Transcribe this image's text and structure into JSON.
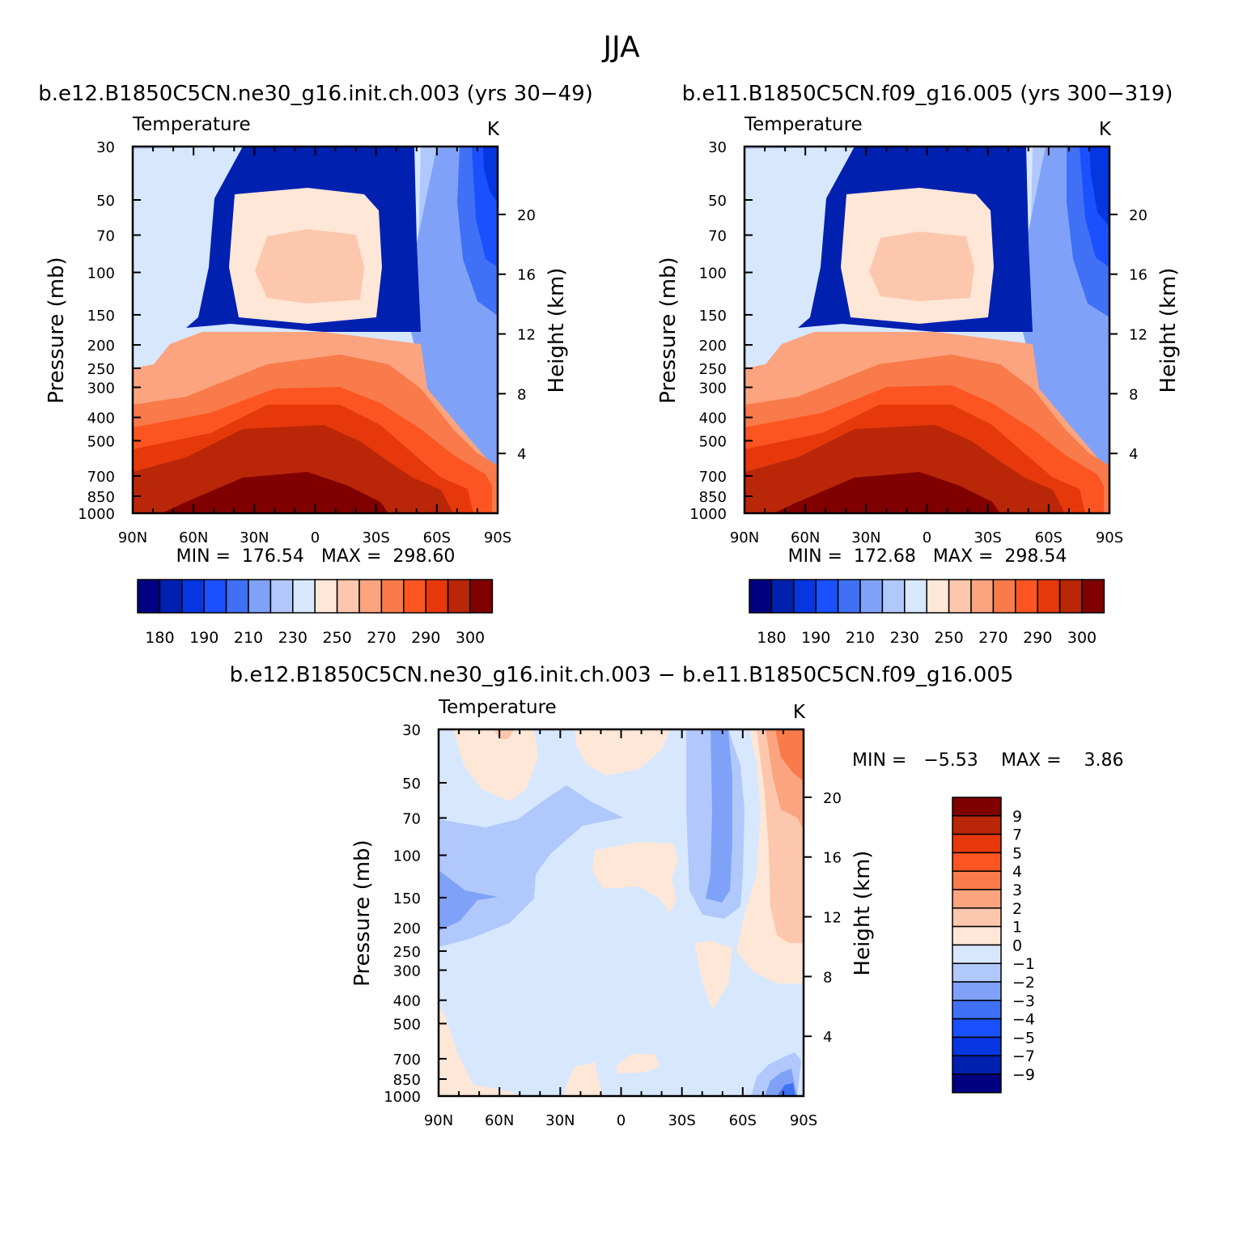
{
  "figure": {
    "title": "JJA",
    "pressure_label": "Pressure (mb)",
    "height_label": "Height (km)",
    "pressure_ticks": [
      "30",
      "50",
      "70",
      "100",
      "150",
      "200",
      "250",
      "300",
      "400",
      "500",
      "700",
      "850",
      "1000"
    ],
    "pressure_values": [
      30,
      50,
      70,
      100,
      150,
      200,
      250,
      300,
      400,
      500,
      700,
      850,
      1000
    ],
    "height_ticks": [
      "20",
      "16",
      "12",
      "8",
      "4"
    ],
    "height_values": [
      20,
      16,
      12,
      8,
      4
    ],
    "lat_ticks": [
      "90N",
      "60N",
      "30N",
      "0",
      "30S",
      "60S",
      "90S"
    ],
    "lat_values": [
      90,
      60,
      30,
      0,
      -30,
      -60,
      -90
    ]
  },
  "colors": {
    "temperature_fills": [
      "#000080",
      "#0020b0",
      "#0536e0",
      "#1a50ff",
      "#3f70f5",
      "#7fa2f8",
      "#b0c8fc",
      "#d7e7fe",
      "#fee7d7",
      "#fdc7ad",
      "#fca47f",
      "#f97a4a",
      "#fc5521",
      "#e6380a",
      "#ba2608",
      "#800000"
    ],
    "difference_fills": [
      "#000080",
      "#0020b0",
      "#0536e0",
      "#1a50ff",
      "#3f70f5",
      "#7fa2f8",
      "#b0c8fc",
      "#d7e7fe",
      "#fee7d7",
      "#fdc7ad",
      "#fca47f",
      "#f97a4a",
      "#fc5521",
      "#e6380a",
      "#ba2608",
      "#800000"
    ]
  },
  "chart_data": [
    {
      "type": "heatmap",
      "panel": "left",
      "subtitle": "b.e12.B1850C5CN.ne30_g16.init.ch.003 (yrs 30−49)",
      "variable": "Temperature",
      "units": "K",
      "stats_text": "MIN =  176.54   MAX =  298.60",
      "min": 176.54,
      "max": 298.6,
      "colorbar_orientation": "horizontal",
      "colorbar_labels": [
        "180",
        "190",
        "210",
        "230",
        "250",
        "270",
        "290",
        "300"
      ],
      "xlim": [
        90,
        -90
      ],
      "ylim": [
        1000,
        30
      ]
    },
    {
      "type": "heatmap",
      "panel": "right",
      "subtitle": "b.e11.B1850C5CN.f09_g16.005 (yrs 300−319)",
      "variable": "Temperature",
      "units": "K",
      "stats_text": "MIN =  172.68   MAX =  298.54",
      "min": 172.68,
      "max": 298.54,
      "colorbar_orientation": "horizontal",
      "colorbar_labels": [
        "180",
        "190",
        "210",
        "230",
        "250",
        "270",
        "290",
        "300"
      ],
      "xlim": [
        90,
        -90
      ],
      "ylim": [
        1000,
        30
      ]
    },
    {
      "type": "heatmap",
      "panel": "difference",
      "subtitle": "b.e12.B1850C5CN.ne30_g16.init.ch.003 − b.e11.B1850C5CN.f09_g16.005",
      "variable": "Temperature",
      "units": "K",
      "stats_min_text": "MIN =   −5.53",
      "stats_max_text": "MAX =    3.86",
      "min": -5.53,
      "max": 3.86,
      "colorbar_orientation": "vertical",
      "colorbar_labels": [
        "9",
        "7",
        "5",
        "4",
        "3",
        "2",
        "1",
        "0",
        "−1",
        "−2",
        "−3",
        "−4",
        "−5",
        "−7",
        "−9"
      ],
      "xlim": [
        90,
        -90
      ],
      "ylim": [
        1000,
        30
      ]
    }
  ]
}
